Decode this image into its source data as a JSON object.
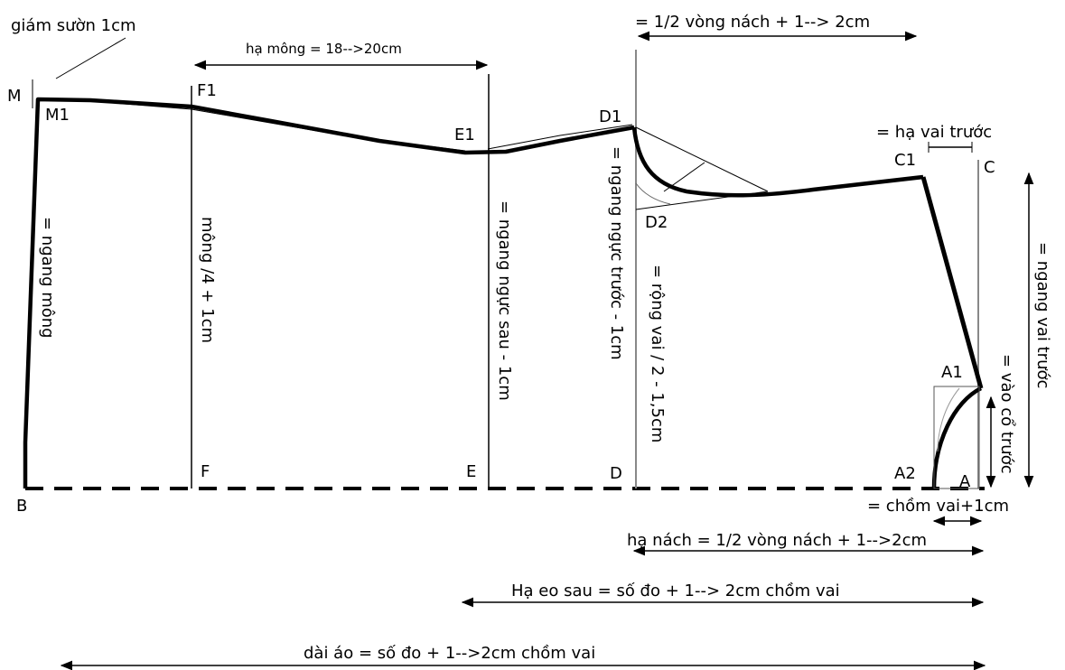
{
  "points": {
    "M": "M",
    "M1": "M1",
    "B": "B",
    "F": "F",
    "F1": "F1",
    "E": "E",
    "E1": "E1",
    "D": "D",
    "D1": "D1",
    "D2": "D2",
    "C": "C",
    "C1": "C1",
    "A": "A",
    "A1": "A1",
    "A2": "A2"
  },
  "labels": {
    "giam_suon": "giám sườn 1cm",
    "ha_mong": "hạ mông = 18-->20cm",
    "half_vong_nach": "= 1/2 vòng nách + 1--> 2cm",
    "ha_vai_truoc": "= hạ vai trước",
    "ngang_mong": "= ngang mông",
    "mong_4": "mông /4 + 1cm",
    "ngang_nguc_sau": "= ngang ngực sau - 1cm",
    "ngang_nguc_truoc": "= ngang ngực trước - 1cm",
    "rong_vai": "= rộng vai / 2 - 1,5cm",
    "ngang_vai_truoc": "= ngang vai trước",
    "vao_co_truoc": "= vào cổ trước",
    "chom_vai": "= chồm vai+1cm",
    "ha_nach": "hạ nách = 1/2 vòng nách + 1-->2cm",
    "ha_eo_sau": "Hạ eo sau = số đo + 1--> 2cm chồm vai",
    "dai_ao": "dài áo = số đo + 1-->2cm chồm vai"
  }
}
